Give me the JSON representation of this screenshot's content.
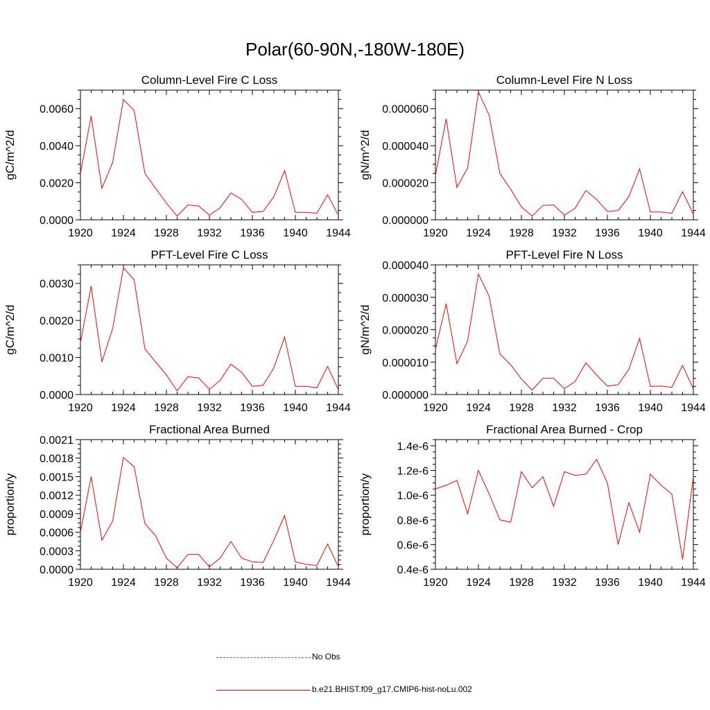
{
  "title": "Polar(60-90N,-180W-180E)",
  "colors": {
    "series": "#ff0000",
    "obs": "#5a5ab4",
    "axis": "#000000"
  },
  "legend": {
    "entries": [
      {
        "label": "No Obs",
        "style": "dashed",
        "color": "#5a5ab4"
      },
      {
        "label": "b.e21.BHIST.f09_g17.CMIP6-hist-noLu.002",
        "style": "solid",
        "color": "#ff0000"
      }
    ]
  },
  "chart_data": [
    {
      "type": "line",
      "title": "Column-Level Fire C Loss",
      "ylabel": "gC/m^2/d",
      "xlim": [
        1920,
        1944
      ],
      "ylim": [
        0,
        0.007
      ],
      "x_ticks": [
        "1920",
        "1924",
        "1928",
        "1932",
        "1936",
        "1940",
        "1944"
      ],
      "y_ticks": [
        {
          "value": 0,
          "label": "0.0000"
        },
        {
          "value": 0.002,
          "label": "0.0020"
        },
        {
          "value": 0.004,
          "label": "0.0040"
        },
        {
          "value": 0.006,
          "label": "0.0060"
        }
      ],
      "x": [
        1920,
        1921,
        1922,
        1923,
        1924,
        1925,
        1926,
        1927,
        1928,
        1929,
        1930,
        1931,
        1932,
        1933,
        1934,
        1935,
        1936,
        1937,
        1938,
        1939,
        1940,
        1941,
        1942,
        1943,
        1944
      ],
      "series": [
        {
          "values": [
            0.0025,
            0.0056,
            0.0017,
            0.0031,
            0.0065,
            0.0059,
            0.0025,
            0.0017,
            0.0009,
            0.0002,
            0.0008,
            0.00075,
            0.00025,
            0.00065,
            0.00145,
            0.0011,
            0.0004,
            0.00045,
            0.00125,
            0.00265,
            0.0004,
            0.0004,
            0.00035,
            0.00135,
            0.00025
          ]
        }
      ]
    },
    {
      "type": "line",
      "title": "Column-Level Fire N Loss",
      "ylabel": "gN/m^2/d",
      "xlim": [
        1920,
        1944
      ],
      "ylim": [
        0,
        7e-05
      ],
      "x_ticks": [
        "1920",
        "1924",
        "1928",
        "1932",
        "1936",
        "1940",
        "1944"
      ],
      "y_ticks": [
        {
          "value": 0,
          "label": "0.000000"
        },
        {
          "value": 2e-05,
          "label": "0.000020"
        },
        {
          "value": 4e-05,
          "label": "0.000040"
        },
        {
          "value": 6e-05,
          "label": "0.000060"
        }
      ],
      "x": [
        1920,
        1921,
        1922,
        1923,
        1924,
        1925,
        1926,
        1927,
        1928,
        1929,
        1930,
        1931,
        1932,
        1933,
        1934,
        1935,
        1936,
        1937,
        1938,
        1939,
        1940,
        1941,
        1942,
        1943,
        1944
      ],
      "series": [
        {
          "values": [
            2.4e-05,
            5.45e-05,
            1.75e-05,
            2.8e-05,
            6.9e-05,
            5.65e-05,
            2.5e-05,
            1.65e-05,
            7e-06,
            2e-06,
            7.8e-06,
            8e-06,
            2.5e-06,
            6.2e-06,
            1.58e-05,
            1.1e-05,
            4.5e-06,
            5e-06,
            1.25e-05,
            2.75e-05,
            4.2e-06,
            4.2e-06,
            3.5e-06,
            1.52e-05,
            3e-06
          ]
        }
      ]
    },
    {
      "type": "line",
      "title": "PFT-Level Fire C Loss",
      "ylabel": "gC/m^2/d",
      "xlim": [
        1920,
        1944
      ],
      "ylim": [
        0,
        0.0035
      ],
      "x_ticks": [
        "1920",
        "1924",
        "1928",
        "1932",
        "1936",
        "1940",
        "1944"
      ],
      "y_ticks": [
        {
          "value": 0,
          "label": "0.0000"
        },
        {
          "value": 0.001,
          "label": "0.0010"
        },
        {
          "value": 0.002,
          "label": "0.0020"
        },
        {
          "value": 0.003,
          "label": "0.0030"
        }
      ],
      "x": [
        1920,
        1921,
        1922,
        1923,
        1924,
        1925,
        1926,
        1927,
        1928,
        1929,
        1930,
        1931,
        1932,
        1933,
        1934,
        1935,
        1936,
        1937,
        1938,
        1939,
        1940,
        1941,
        1942,
        1943,
        1944
      ],
      "series": [
        {
          "values": [
            0.0014,
            0.00293,
            0.00088,
            0.00178,
            0.00342,
            0.0031,
            0.00123,
            0.00088,
            0.00053,
            0.0001,
            0.00048,
            0.00045,
            0.00014,
            0.00038,
            0.00082,
            0.0006,
            0.00022,
            0.00025,
            0.00072,
            0.00155,
            0.00022,
            0.00022,
            0.00018,
            0.00076,
            0.00013
          ]
        }
      ]
    },
    {
      "type": "line",
      "title": "PFT-Level Fire N Loss",
      "ylabel": "gN/m^2/d",
      "xlim": [
        1920,
        1944
      ],
      "ylim": [
        0,
        4e-05
      ],
      "x_ticks": [
        "1920",
        "1924",
        "1928",
        "1932",
        "1936",
        "1940",
        "1944"
      ],
      "y_ticks": [
        {
          "value": 0,
          "label": "0.000000"
        },
        {
          "value": 1e-05,
          "label": "0.000010"
        },
        {
          "value": 2e-05,
          "label": "0.000020"
        },
        {
          "value": 3e-05,
          "label": "0.000030"
        },
        {
          "value": 4e-05,
          "label": "0.000040"
        }
      ],
      "x": [
        1920,
        1921,
        1922,
        1923,
        1924,
        1925,
        1926,
        1927,
        1928,
        1929,
        1930,
        1931,
        1932,
        1933,
        1934,
        1935,
        1936,
        1937,
        1938,
        1939,
        1940,
        1941,
        1942,
        1943,
        1944
      ],
      "series": [
        {
          "values": [
            1.4e-05,
            2.8e-05,
            9.5e-06,
            1.65e-05,
            3.72e-05,
            3.03e-05,
            1.25e-05,
            9.2e-06,
            4.8e-06,
            1.4e-06,
            5e-06,
            5e-06,
            1.8e-06,
            4e-06,
            9.8e-06,
            6e-06,
            2.6e-06,
            3e-06,
            7.8e-06,
            1.73e-05,
            2.5e-06,
            2.6e-06,
            2.2e-06,
            9e-06,
            1.7e-06
          ]
        }
      ]
    },
    {
      "type": "line",
      "title": "Fractional Area Burned",
      "ylabel": "proportion/y",
      "xlim": [
        1920,
        1944
      ],
      "ylim": [
        0,
        0.0021
      ],
      "x_ticks": [
        "1920",
        "1924",
        "1928",
        "1932",
        "1936",
        "1940",
        "1944"
      ],
      "y_ticks": [
        {
          "value": 0,
          "label": "0.0000"
        },
        {
          "value": 0.0003,
          "label": "0.0003"
        },
        {
          "value": 0.0006,
          "label": "0.0006"
        },
        {
          "value": 0.0009,
          "label": "0.0009"
        },
        {
          "value": 0.0012,
          "label": "0.0012"
        },
        {
          "value": 0.0015,
          "label": "0.0015"
        },
        {
          "value": 0.0018,
          "label": "0.0018"
        },
        {
          "value": 0.0021,
          "label": "0.0021"
        }
      ],
      "x": [
        1920,
        1921,
        1922,
        1923,
        1924,
        1925,
        1926,
        1927,
        1928,
        1929,
        1930,
        1931,
        1932,
        1933,
        1934,
        1935,
        1936,
        1937,
        1938,
        1939,
        1940,
        1941,
        1942,
        1943,
        1944
      ],
      "series": [
        {
          "values": [
            0.0006,
            0.0015,
            0.00047,
            0.00078,
            0.00181,
            0.00166,
            0.00074,
            0.00054,
            0.00018,
            2e-05,
            0.00024,
            0.00024,
            4e-05,
            0.00018,
            0.00045,
            0.00018,
            0.00012,
            0.00011,
            0.00047,
            0.00087,
            0.00012,
            8e-05,
            6e-05,
            0.00041,
            4e-05
          ]
        }
      ]
    },
    {
      "type": "line",
      "title": "Fractional Area Burned - Crop",
      "ylabel": "proportion/y",
      "xlim": [
        1920,
        1944
      ],
      "ylim": [
        4e-07,
        1.45e-06
      ],
      "x_ticks": [
        "1920",
        "1924",
        "1928",
        "1932",
        "1936",
        "1940",
        "1944"
      ],
      "y_ticks": [
        {
          "value": 4e-07,
          "label": "0.4e-6"
        },
        {
          "value": 6e-07,
          "label": "0.6e-6"
        },
        {
          "value": 8e-07,
          "label": "0.8e-6"
        },
        {
          "value": 1e-06,
          "label": "1.0e-6"
        },
        {
          "value": 1.2e-06,
          "label": "1.2e-6"
        },
        {
          "value": 1.4e-06,
          "label": "1.4e-6"
        }
      ],
      "x": [
        1920,
        1921,
        1922,
        1923,
        1924,
        1925,
        1926,
        1927,
        1928,
        1929,
        1930,
        1931,
        1932,
        1933,
        1934,
        1935,
        1936,
        1937,
        1938,
        1939,
        1940,
        1941,
        1942,
        1943,
        1944
      ],
      "series": [
        {
          "values": [
            1.05e-06,
            1.08e-06,
            1.12e-06,
            8.5e-07,
            1.2e-06,
            1.01e-06,
            8e-07,
            7.8e-07,
            1.19e-06,
            1.06e-06,
            1.15e-06,
            9.1e-07,
            1.19e-06,
            1.16e-06,
            1.17e-06,
            1.29e-06,
            1.1e-06,
            6e-07,
            9.4e-07,
            7e-07,
            1.17e-06,
            1.08e-06,
            1.01e-06,
            4.8e-07,
            1.15e-06
          ]
        }
      ]
    }
  ]
}
